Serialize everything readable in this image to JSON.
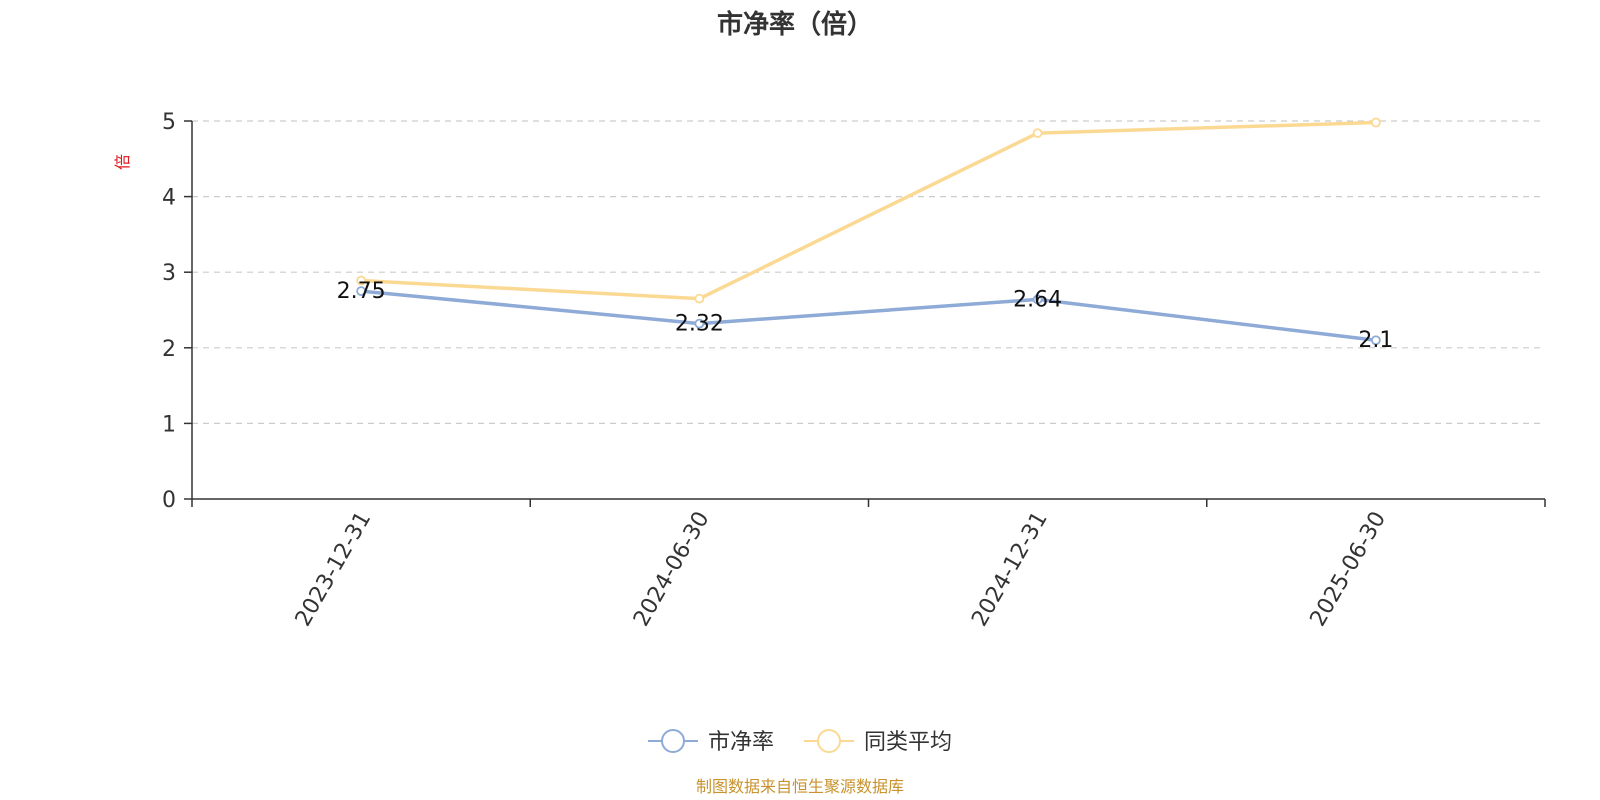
{
  "chart_data": {
    "type": "line",
    "title": "市净率（倍）",
    "ylabel": "倍",
    "xlabel": "",
    "categories": [
      "2023-12-31",
      "2024-06-30",
      "2024-12-31",
      "2025-06-30"
    ],
    "ylim": [
      0,
      5
    ],
    "yticks": [
      0,
      1,
      2,
      3,
      4,
      5
    ],
    "grid": true,
    "legend_position": "bottom",
    "series": [
      {
        "name": "市净率",
        "color": "#8eaad6",
        "values": [
          2.75,
          2.32,
          2.64,
          2.1
        ],
        "data_labels": [
          "2.75",
          "2.32",
          "2.64",
          "2.1"
        ]
      },
      {
        "name": "同类平均",
        "color": "#fbd993",
        "values": [
          2.89,
          2.65,
          4.84,
          4.98
        ]
      }
    ]
  },
  "source_note": "制图数据来自恒生聚源数据库"
}
